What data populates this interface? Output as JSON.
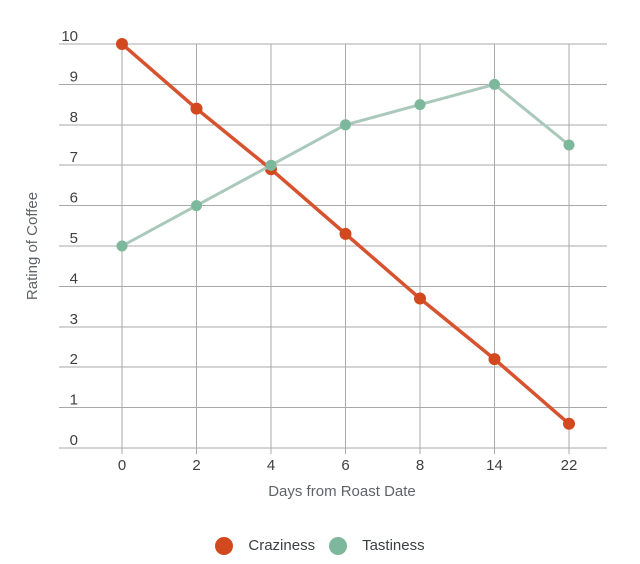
{
  "chart_data": {
    "type": "line",
    "categories": [
      "0",
      "2",
      "4",
      "6",
      "8",
      "14",
      "22"
    ],
    "series": [
      {
        "name": "Craziness",
        "values": [
          10,
          8.4,
          6.9,
          5.3,
          3.7,
          2.2,
          0.6
        ],
        "point_color": "#d2491f",
        "line_color": "#d75330"
      },
      {
        "name": "Tastiness",
        "values": [
          5,
          6,
          7,
          8,
          8.5,
          9,
          7.5
        ],
        "point_color": "#7db89c",
        "line_color": "#aac9ba"
      }
    ],
    "title": "",
    "xlabel": "Days from Roast Date",
    "ylabel": "Rating of Coffee",
    "ylim": [
      0,
      10
    ],
    "ytick_step": 1,
    "yticks": [
      "0",
      "1",
      "2",
      "3",
      "4",
      "5",
      "6",
      "7",
      "8",
      "9",
      "10"
    ],
    "grid": true,
    "grid_color": "#a9a9a9",
    "legend_position": "bottom"
  }
}
